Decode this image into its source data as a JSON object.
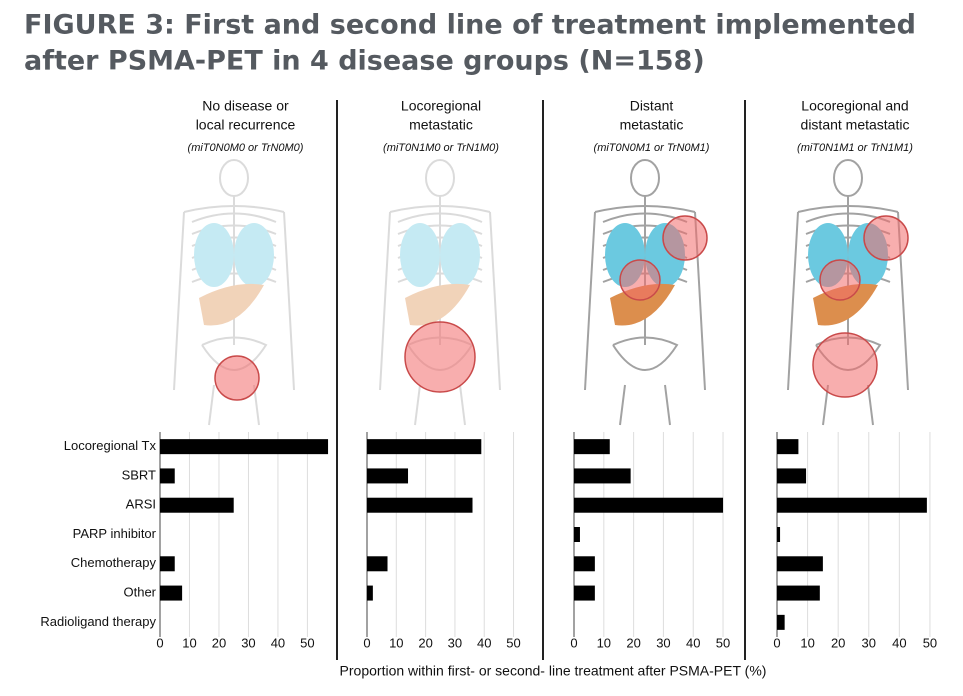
{
  "title": [
    "FIGURE 3: First and second line of treatment implemented",
    "after PSMA-PET in 4 disease groups (N=158)"
  ],
  "x_label": "Proportion within first- or second- line treatment after PSMA-PET (%)",
  "categories": [
    "Locoregional Tx",
    "SBRT",
    "ARSI",
    "PARP inhibitor",
    "Chemotherapy",
    "Other",
    "Radioligand therapy"
  ],
  "chart_data": [
    {
      "type": "bar",
      "orientation": "horizontal",
      "title": [
        "No disease or",
        "local recurrence"
      ],
      "subtitle": "(miT0N0M0 or TrN0M0)",
      "color": "#000000",
      "values": [
        57,
        5,
        25,
        0,
        5,
        7.5,
        0
      ],
      "xlim": [
        0,
        58
      ],
      "xticks": [
        0,
        10,
        20,
        30,
        40,
        50
      ],
      "grid": true
    },
    {
      "type": "bar",
      "orientation": "horizontal",
      "title": [
        "Locoregional",
        "metastatic"
      ],
      "subtitle": "(miT0N1M0 or TrN1M0)",
      "color": "#000000",
      "values": [
        39,
        14,
        36,
        0,
        7,
        2,
        0
      ],
      "xlim": [
        0,
        50.5
      ],
      "xticks": [
        0,
        10,
        20,
        30,
        40,
        50
      ],
      "grid": true
    },
    {
      "type": "bar",
      "orientation": "horizontal",
      "title": [
        "Distant",
        "metastatic"
      ],
      "subtitle": "(miT0N0M1 or TrN0M1)",
      "color": "#000000",
      "values": [
        12,
        19,
        50,
        2,
        7,
        7,
        0
      ],
      "xlim": [
        0,
        52
      ],
      "xticks": [
        0,
        10,
        20,
        30,
        40,
        50
      ],
      "grid": true
    },
    {
      "type": "bar",
      "orientation": "horizontal",
      "title": [
        "Locoregional and",
        "distant metastatic"
      ],
      "subtitle": "(miT0N1M1 or TrN1M1)",
      "color": "#000000",
      "values": [
        7,
        9.5,
        49,
        1,
        15,
        14,
        2.5
      ],
      "xlim": [
        0,
        51
      ],
      "xticks": [
        0,
        10,
        20,
        30,
        40,
        50
      ],
      "grid": true
    }
  ]
}
